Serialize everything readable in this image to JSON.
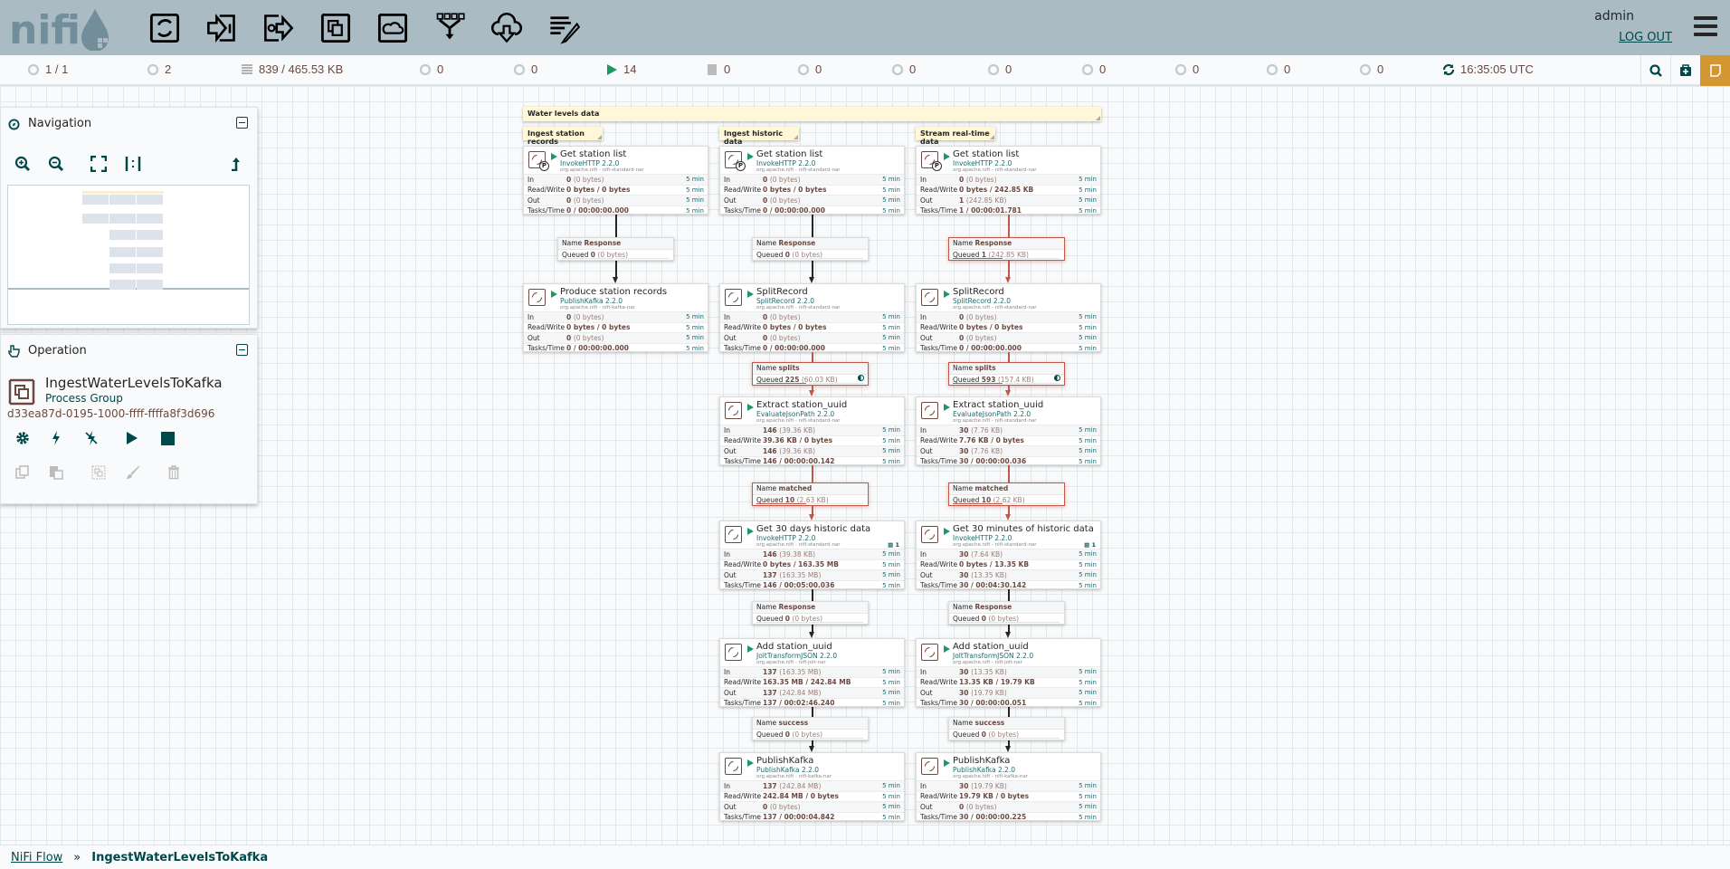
{
  "header": {
    "logo_text": "nifi",
    "toolbar": [
      {
        "icon": "processor-icon",
        "label": "Processor"
      },
      {
        "icon": "input-port-icon",
        "label": "Input Port"
      },
      {
        "icon": "output-port-icon",
        "label": "Output Port"
      },
      {
        "icon": "process-group-icon",
        "label": "Process Group"
      },
      {
        "icon": "remote-process-group-icon",
        "label": "Remote Process Group"
      },
      {
        "icon": "funnel-icon",
        "label": "Funnel"
      },
      {
        "icon": "template-icon",
        "label": "Template"
      },
      {
        "icon": "label-icon",
        "label": "Label"
      }
    ],
    "user": "admin",
    "logout": "LOG OUT"
  },
  "status": [
    {
      "icon": "cluster-icon",
      "value": "1 / 1"
    },
    {
      "icon": "threads-icon",
      "value": "2"
    },
    {
      "icon": "queue-icon",
      "value": "839 / 465.53 KB"
    },
    {
      "icon": "transmitting-icon",
      "value": "0"
    },
    {
      "icon": "not-transmitting-icon",
      "value": "0"
    },
    {
      "icon": "running-icon",
      "value": "14"
    },
    {
      "icon": "stopped-icon",
      "value": "0"
    },
    {
      "icon": "invalid-icon",
      "value": "0"
    },
    {
      "icon": "disabled-icon",
      "value": "0"
    },
    {
      "icon": "up-to-date-icon",
      "value": "0"
    },
    {
      "icon": "locally-modified-icon",
      "value": "0"
    },
    {
      "icon": "stale-icon",
      "value": "0"
    },
    {
      "icon": "modified-stale-icon",
      "value": "0"
    },
    {
      "icon": "sync-failure-icon",
      "value": "0"
    },
    {
      "icon": "refresh-icon",
      "value": "16:35:05 UTC"
    }
  ],
  "navigation": {
    "title": "Navigation"
  },
  "operation": {
    "title": "Operation",
    "name": "IngestWaterLevelsToKafka",
    "type": "Process Group",
    "id": "d33ea87d-0195-1000-ffff-ffffa8f3d696"
  },
  "labels": [
    "Water levels data",
    "Ingest station records",
    "Ingest historic data",
    "Stream real-time data"
  ],
  "row_keys": [
    "In",
    "Read/Write",
    "Out",
    "Tasks/Time"
  ],
  "window": "5 min",
  "processors": [
    {
      "name": "Get station list",
      "type": "InvokeHTTP 2.2.0",
      "bundle": "org.apache.nifi - nifi-standard-nar",
      "primary": "P",
      "in": "0",
      "in_size": "(0 bytes)",
      "rw": "0 bytes / 0 bytes",
      "out": "0",
      "out_size": "(0 bytes)",
      "tasks": "0 / 00:00:00.000"
    },
    {
      "name": "Produce station records",
      "type": "PublishKafka 2.2.0",
      "bundle": "org.apache.nifi - nifi-kafka-nar",
      "in": "0",
      "in_size": "(0 bytes)",
      "rw": "0 bytes / 0 bytes",
      "out": "0",
      "out_size": "(0 bytes)",
      "tasks": "0 / 00:00:00.000"
    },
    {
      "name": "Get station list",
      "type": "InvokeHTTP 2.2.0",
      "bundle": "org.apache.nifi - nifi-standard-nar",
      "primary": "P",
      "in": "0",
      "in_size": "(0 bytes)",
      "rw": "0 bytes / 0 bytes",
      "out": "0",
      "out_size": "(0 bytes)",
      "tasks": "0 / 00:00:00.000"
    },
    {
      "name": "SplitRecord",
      "type": "SplitRecord 2.2.0",
      "bundle": "org.apache.nifi - nifi-standard-nar",
      "in": "0",
      "in_size": "(0 bytes)",
      "rw": "0 bytes / 0 bytes",
      "out": "0",
      "out_size": "(0 bytes)",
      "tasks": "0 / 00:00:00.000"
    },
    {
      "name": "Extract station_uuid",
      "type": "EvaluateJsonPath 2.2.0",
      "bundle": "org.apache.nifi - nifi-standard-nar",
      "in": "146",
      "in_size": "(39.36 KB)",
      "rw": "39.36 KB / 0 bytes",
      "out": "146",
      "out_size": "(39.36 KB)",
      "tasks": "146 / 00:00:00.142"
    },
    {
      "name": "Get 30 days historic data",
      "type": "InvokeHTTP 2.2.0",
      "bundle": "org.apache.nifi - nifi-standard-nar",
      "threads": "1",
      "in": "146",
      "in_size": "(39.38 KB)",
      "rw": "0 bytes / 163.35 MB",
      "out": "137",
      "out_size": "(163.35 MB)",
      "tasks": "146 / 00:05:00.036"
    },
    {
      "name": "Add station_uuid",
      "type": "JoltTransformJSON 2.2.0",
      "bundle": "org.apache.nifi - nifi-jolt-nar",
      "in": "137",
      "in_size": "(163.35 MB)",
      "rw": "163.35 MB / 242.84 MB",
      "out": "137",
      "out_size": "(242.84 MB)",
      "tasks": "137 / 00:02:46.240"
    },
    {
      "name": "PublishKafka",
      "type": "PublishKafka 2.2.0",
      "bundle": "org.apache.nifi - nifi-kafka-nar",
      "in": "137",
      "in_size": "(242.84 MB)",
      "rw": "242.84 MB / 0 bytes",
      "out": "0",
      "out_size": "(0 bytes)",
      "tasks": "137 / 00:00:04.842"
    },
    {
      "name": "Get station list",
      "type": "InvokeHTTP 2.2.0",
      "bundle": "org.apache.nifi - nifi-standard-nar",
      "primary": "P",
      "in": "0",
      "in_size": "(0 bytes)",
      "rw": "0 bytes / 242.85 KB",
      "out": "1",
      "out_size": "(242.85 KB)",
      "tasks": "1 / 00:00:01.781"
    },
    {
      "name": "SplitRecord",
      "type": "SplitRecord 2.2.0",
      "bundle": "org.apache.nifi - nifi-standard-nar",
      "in": "0",
      "in_size": "(0 bytes)",
      "rw": "0 bytes / 0 bytes",
      "out": "0",
      "out_size": "(0 bytes)",
      "tasks": "0 / 00:00:00.000"
    },
    {
      "name": "Extract station_uuid",
      "type": "EvaluateJsonPath 2.2.0",
      "bundle": "org.apache.nifi - nifi-standard-nar",
      "in": "30",
      "in_size": "(7.76 KB)",
      "rw": "7.76 KB / 0 bytes",
      "out": "30",
      "out_size": "(7.76 KB)",
      "tasks": "30 / 00:00:00.036"
    },
    {
      "name": "Get 30 minutes of historic data",
      "type": "InvokeHTTP 2.2.0",
      "bundle": "org.apache.nifi - nifi-standard-nar",
      "threads": "1",
      "in": "30",
      "in_size": "(7.64 KB)",
      "rw": "0 bytes / 13.35 KB",
      "out": "30",
      "out_size": "(13.35 KB)",
      "tasks": "30 / 00:04:30.142"
    },
    {
      "name": "Add station_uuid",
      "type": "JoltTransformJSON 2.2.0",
      "bundle": "org.apache.nifi - nifi-jolt-nar",
      "in": "30",
      "in_size": "(13.35 KB)",
      "rw": "13.35 KB / 19.79 KB",
      "out": "30",
      "out_size": "(19.79 KB)",
      "tasks": "30 / 00:00:00.051"
    },
    {
      "name": "PublishKafka",
      "type": "PublishKafka 2.2.0",
      "bundle": "org.apache.nifi - nifi-kafka-nar",
      "in": "30",
      "in_size": "(19.79 KB)",
      "rw": "19.79 KB / 0 bytes",
      "out": "0",
      "out_size": "(0 bytes)",
      "tasks": "30 / 00:00:00.225"
    }
  ],
  "conn_keys": {
    "name": "Name",
    "queued": "Queued"
  },
  "connections": [
    {
      "name": "Response",
      "count": "0",
      "size": "(0 bytes)",
      "backpressure": false
    },
    {
      "name": "Response",
      "count": "0",
      "size": "(0 bytes)",
      "backpressure": false
    },
    {
      "name": "splits",
      "count": "225",
      "size": "(60.03 KB)",
      "backpressure": true,
      "load_balanced": true
    },
    {
      "name": "matched",
      "count": "10",
      "size": "(2.63 KB)",
      "backpressure": true
    },
    {
      "name": "Response",
      "count": "0",
      "size": "(0 bytes)",
      "backpressure": false
    },
    {
      "name": "success",
      "count": "0",
      "size": "(0 bytes)",
      "backpressure": false
    },
    {
      "name": "Response",
      "count": "1",
      "size": "(242.85 KB)",
      "backpressure": true
    },
    {
      "name": "splits",
      "count": "593",
      "size": "(157.4 KB)",
      "backpressure": true,
      "load_balanced": true
    },
    {
      "name": "matched",
      "count": "10",
      "size": "(2.62 KB)",
      "backpressure": true
    },
    {
      "name": "Response",
      "count": "0",
      "size": "(0 bytes)",
      "backpressure": false
    },
    {
      "name": "success",
      "count": "0",
      "size": "(0 bytes)",
      "backpressure": false
    }
  ],
  "breadcrumb": {
    "root": "NiFi Flow",
    "separator": "»",
    "current": "IngestWaterLevelsToKafka"
  },
  "colors": {
    "header": "#aabbc3",
    "accent": "#004849",
    "running": "#1a9964",
    "backpressure": "#c0584a",
    "value": "#6b4940"
  }
}
